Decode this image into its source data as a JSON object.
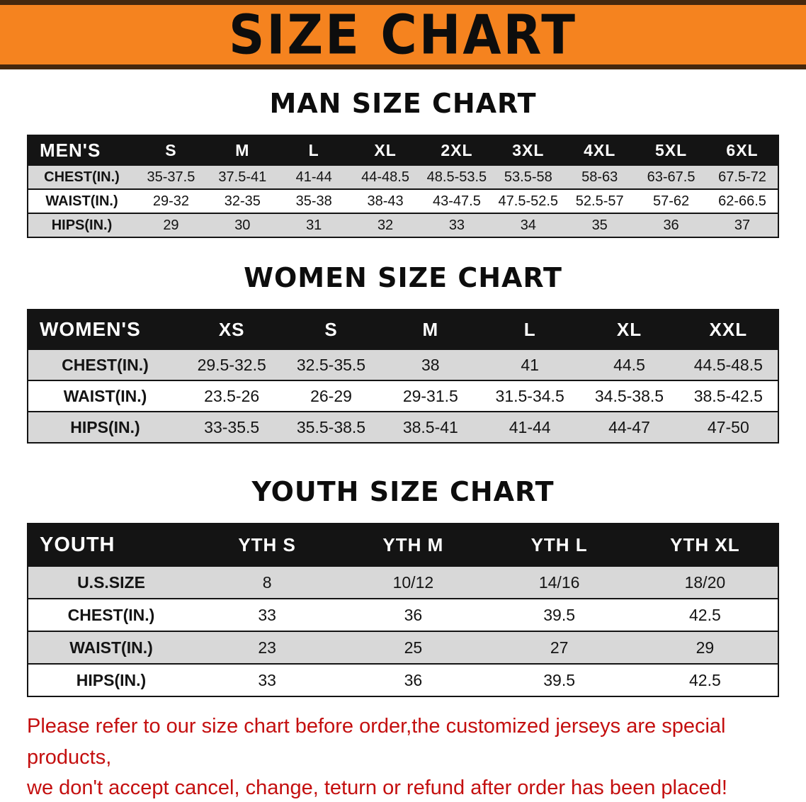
{
  "banner": {
    "title": "SIZE CHART",
    "background_color": "#f5831f",
    "border_color": "#45280e"
  },
  "sections": {
    "men": {
      "heading": "MAN SIZE CHART",
      "table": {
        "header": [
          "MEN'S",
          "S",
          "M",
          "L",
          "XL",
          "2XL",
          "3XL",
          "4XL",
          "5XL",
          "6XL"
        ],
        "rows": [
          [
            "CHEST(IN.)",
            "35-37.5",
            "37.5-41",
            "41-44",
            "44-48.5",
            "48.5-53.5",
            "53.5-58",
            "58-63",
            "63-67.5",
            "67.5-72"
          ],
          [
            "WAIST(IN.)",
            "29-32",
            "32-35",
            "35-38",
            "38-43",
            "43-47.5",
            "47.5-52.5",
            "52.5-57",
            "57-62",
            "62-66.5"
          ],
          [
            "HIPS(IN.)",
            "29",
            "30",
            "31",
            "32",
            "33",
            "34",
            "35",
            "36",
            "37"
          ]
        ]
      }
    },
    "women": {
      "heading": "WOMEN SIZE CHART",
      "table": {
        "header": [
          "WOMEN'S",
          "XS",
          "S",
          "M",
          "L",
          "XL",
          "XXL"
        ],
        "rows": [
          [
            "CHEST(IN.)",
            "29.5-32.5",
            "32.5-35.5",
            "38",
            "41",
            "44.5",
            "44.5-48.5"
          ],
          [
            "WAIST(IN.)",
            "23.5-26",
            "26-29",
            "29-31.5",
            "31.5-34.5",
            "34.5-38.5",
            "38.5-42.5"
          ],
          [
            "HIPS(IN.)",
            "33-35.5",
            "35.5-38.5",
            "38.5-41",
            "41-44",
            "44-47",
            "47-50"
          ]
        ]
      }
    },
    "youth": {
      "heading": "YOUTH SIZE CHART",
      "table": {
        "header": [
          "YOUTH",
          "YTH S",
          "YTH M",
          "YTH L",
          "YTH XL"
        ],
        "rows": [
          [
            "U.S.SIZE",
            "8",
            "10/12",
            "14/16",
            "18/20"
          ],
          [
            "CHEST(IN.)",
            "33",
            "36",
            "39.5",
            "42.5"
          ],
          [
            "WAIST(IN.)",
            "23",
            "25",
            "27",
            "29"
          ],
          [
            "HIPS(IN.)",
            "33",
            "36",
            "39.5",
            "42.5"
          ]
        ]
      }
    }
  },
  "footer": {
    "line1": "Please refer to our size chart before order,the customized jerseys are special products,",
    "line2": "we don't accept cancel, change, teturn or refund after order has been placed!",
    "text_color": "#c40f0f"
  }
}
